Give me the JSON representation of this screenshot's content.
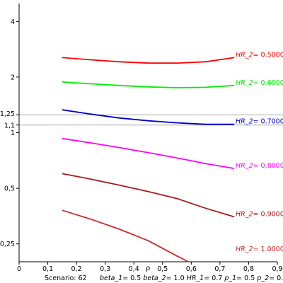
{
  "chart_data": {
    "type": "line",
    "title": "",
    "xlabel": "ρ",
    "ylabel": "",
    "xlim": [
      0,
      0.9
    ],
    "ylim": [
      0.2,
      5
    ],
    "y_scale": "log",
    "x_ticks": [
      "0",
      "0,1",
      "0,2",
      "0,3",
      "0,4",
      "0,5",
      "0,6",
      "0,7",
      "0,8",
      "0,9"
    ],
    "x_tick_values": [
      0,
      0.1,
      0.2,
      0.3,
      0.4,
      0.5,
      0.6,
      0.7,
      0.8,
      0.9
    ],
    "y_ticks": [
      "0,25",
      "0,5",
      "1",
      "1,1",
      "1,25",
      "2",
      "4"
    ],
    "y_tick_values": [
      0.25,
      0.5,
      1,
      1.1,
      1.25,
      2,
      4
    ],
    "reference_lines": [
      1.1,
      1.25
    ],
    "series": [
      {
        "label_name": "HR_2",
        "label_value": "0.5000",
        "color": "#ff0000",
        "x": [
          0.15,
          0.25,
          0.35,
          0.45,
          0.55,
          0.65,
          0.75
        ],
        "y": [
          2.55,
          2.48,
          2.42,
          2.38,
          2.38,
          2.42,
          2.55
        ]
      },
      {
        "label_name": "HR_2",
        "label_value": "0.6000",
        "color": "#00ee00",
        "x": [
          0.15,
          0.25,
          0.35,
          0.45,
          0.55,
          0.65,
          0.75
        ],
        "y": [
          1.88,
          1.84,
          1.8,
          1.77,
          1.75,
          1.76,
          1.8
        ]
      },
      {
        "label_name": "HR_2",
        "label_value": "0.7000",
        "color": "#0000cc",
        "x": [
          0.15,
          0.25,
          0.35,
          0.45,
          0.55,
          0.65,
          0.75
        ],
        "y": [
          1.33,
          1.26,
          1.2,
          1.16,
          1.13,
          1.11,
          1.11
        ]
      },
      {
        "label_name": "HR_2",
        "label_value": "0.8000",
        "color": "#ff00ff",
        "x": [
          0.15,
          0.25,
          0.35,
          0.45,
          0.55,
          0.65,
          0.75
        ],
        "y": [
          0.93,
          0.88,
          0.83,
          0.78,
          0.73,
          0.68,
          0.64
        ]
      },
      {
        "label_name": "HR_2",
        "label_value": "0.9000",
        "color": "#aa1a1a",
        "x": [
          0.15,
          0.25,
          0.35,
          0.45,
          0.55,
          0.65,
          0.75
        ],
        "y": [
          0.6,
          0.56,
          0.52,
          0.48,
          0.44,
          0.39,
          0.35
        ]
      },
      {
        "label_name": "HR_2",
        "label_value": "1.0000",
        "color": "#cc2a2a",
        "x": [
          0.15,
          0.25,
          0.35,
          0.45,
          0.55,
          0.59
        ],
        "y": [
          0.38,
          0.34,
          0.3,
          0.26,
          0.215,
          0.2
        ]
      }
    ]
  },
  "footer": {
    "scenario": "Scenario: 62",
    "params": [
      {
        "name": "beta_1",
        "value": "0.5"
      },
      {
        "name": "beta_2",
        "value": "1.0"
      },
      {
        "name": "HR_1",
        "value": "0.7"
      },
      {
        "name": "p_1",
        "value": "0.5"
      },
      {
        "name": "p_2",
        "value": "0.3"
      }
    ]
  }
}
